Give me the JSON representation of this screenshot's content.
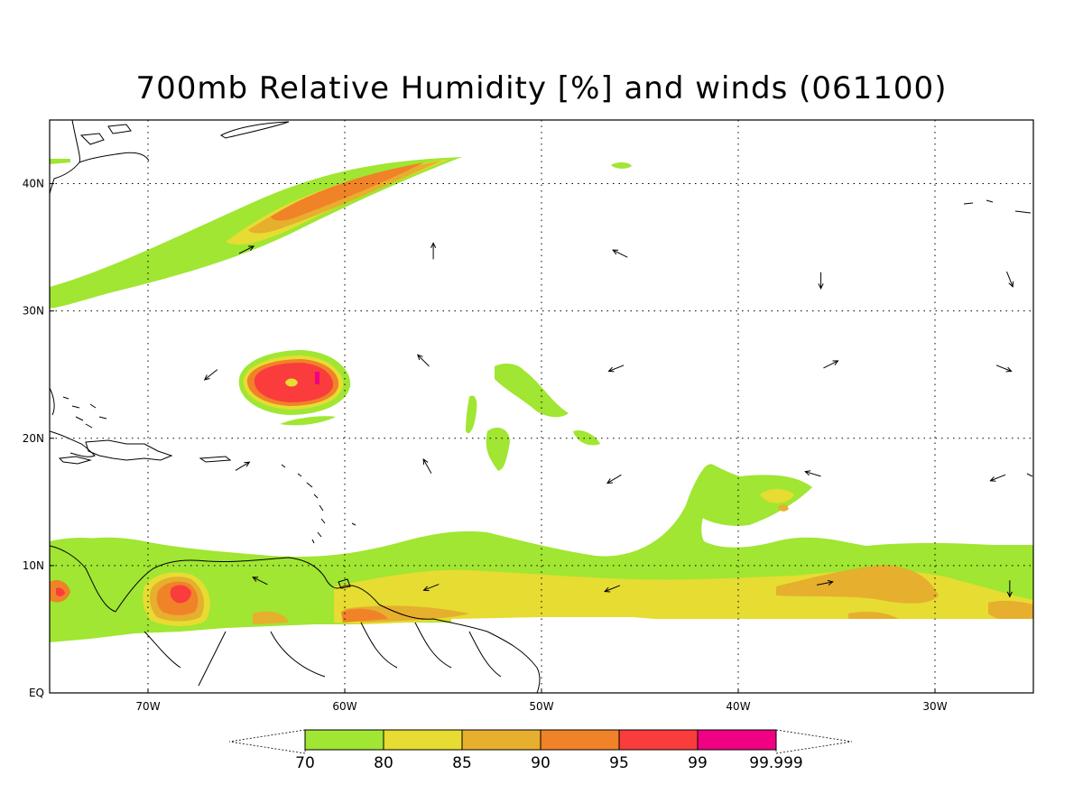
{
  "title": "700mb Relative Humidity [%] and winds (061100)",
  "map": {
    "lon_range": [
      -75,
      -25
    ],
    "lat_range": [
      0,
      45
    ],
    "lon_ticks": [
      {
        "value": -70,
        "label": "70W"
      },
      {
        "value": -60,
        "label": "60W"
      },
      {
        "value": -50,
        "label": "50W"
      },
      {
        "value": -40,
        "label": "40W"
      },
      {
        "value": -30,
        "label": "30W"
      }
    ],
    "lat_ticks": [
      {
        "value": 0,
        "label": "EQ"
      },
      {
        "value": 10,
        "label": "10N"
      },
      {
        "value": 20,
        "label": "20N"
      },
      {
        "value": 30,
        "label": "30N"
      },
      {
        "value": 40,
        "label": "40N"
      }
    ],
    "grid": "dotted"
  },
  "colorbar": {
    "colors": [
      "#a0e632",
      "#e6dc32",
      "#e6af2d",
      "#f08228",
      "#fa3c3c",
      "#f00082"
    ],
    "labels": [
      "70",
      "80",
      "85",
      "90",
      "95",
      "99",
      "99.999"
    ]
  },
  "winds": [
    {
      "lon": -55.5,
      "lat": 34.7,
      "u": 0,
      "v": 1
    },
    {
      "lon": -46,
      "lat": 34.5,
      "u": -1,
      "v": 0.5
    },
    {
      "lon": -35.8,
      "lat": 32.4,
      "u": 0,
      "v": -1
    },
    {
      "lon": -26.2,
      "lat": 32.5,
      "u": 0.4,
      "v": -1
    },
    {
      "lon": -65,
      "lat": 34.8,
      "u": 1,
      "v": 0.5
    },
    {
      "lon": -56,
      "lat": 26.1,
      "u": -0.7,
      "v": 0.7
    },
    {
      "lon": -46.2,
      "lat": 25.5,
      "u": -1,
      "v": -0.4
    },
    {
      "lon": -35.3,
      "lat": 25.8,
      "u": 1,
      "v": 0.5
    },
    {
      "lon": -26.5,
      "lat": 25.5,
      "u": 1,
      "v": -0.4
    },
    {
      "lon": -66.8,
      "lat": 25.0,
      "u": -1,
      "v": -0.8
    },
    {
      "lon": -55.8,
      "lat": 17.8,
      "u": -0.5,
      "v": 0.9
    },
    {
      "lon": -46.3,
      "lat": 16.8,
      "u": -1,
      "v": -0.6
    },
    {
      "lon": -36.2,
      "lat": 17.2,
      "u": -1,
      "v": 0.3
    },
    {
      "lon": -26.8,
      "lat": 16.9,
      "u": -1,
      "v": -0.4
    },
    {
      "lon": -65.2,
      "lat": 17.8,
      "u": 1,
      "v": 0.6
    },
    {
      "lon": -64.3,
      "lat": 8.8,
      "u": -1,
      "v": 0.5
    },
    {
      "lon": -55.6,
      "lat": 8.3,
      "u": -1,
      "v": -0.4
    },
    {
      "lon": -46.4,
      "lat": 8.2,
      "u": -1,
      "v": -0.4
    },
    {
      "lon": -35.6,
      "lat": 8.6,
      "u": 1,
      "v": 0.2
    },
    {
      "lon": -26.2,
      "lat": 8.2,
      "u": 0,
      "v": -1
    }
  ]
}
